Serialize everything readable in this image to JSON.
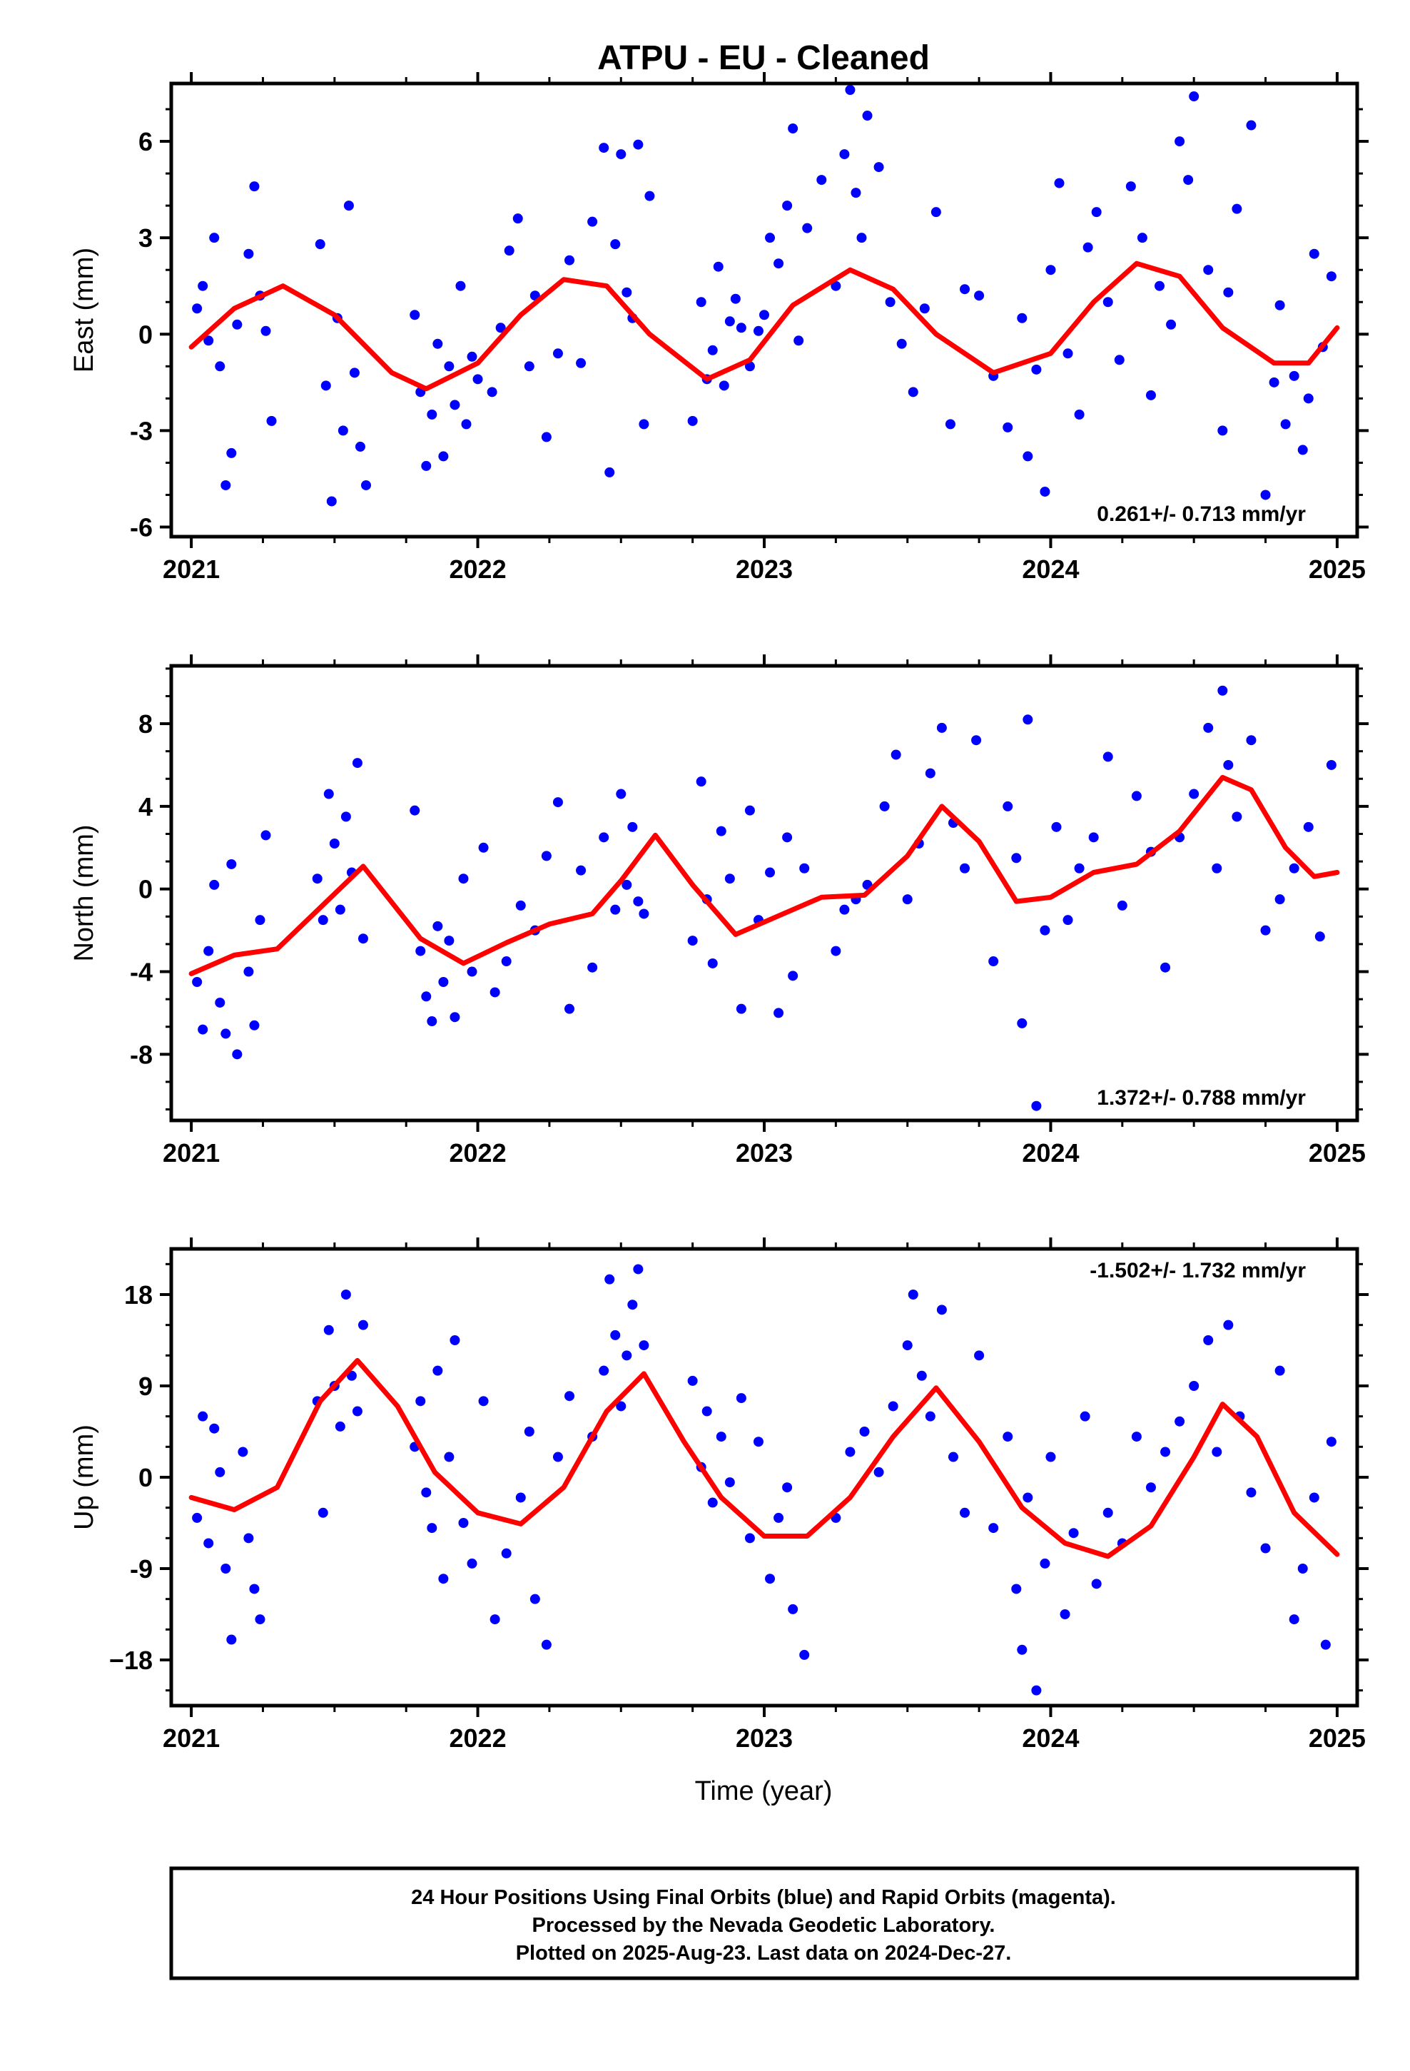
{
  "title": "ATPU  - EU - Cleaned",
  "xlabel": "Time (year)",
  "colors": {
    "final_orbits": "#0000ff",
    "fit": "#ff0000",
    "frame": "#000000"
  },
  "footer": {
    "line1": "24 Hour Positions Using Final Orbits (blue) and Rapid Orbits (magenta).",
    "line2": "Processed by the Nevada Geodetic Laboratory.",
    "line3": "Plotted on 2025-Aug-23. Last data on 2024-Dec-27."
  },
  "chart_data": [
    {
      "type": "scatter",
      "ylabel": "East (mm)",
      "rate_label": "0.261+/- 0.713 mm/yr",
      "rate_position": "bottom-right",
      "xlim": [
        2020.93,
        2025.07
      ],
      "ylim": [
        -6.3,
        7.8
      ],
      "x_ticks": [
        2021,
        2022,
        2023,
        2024,
        2025
      ],
      "x_tick_labels": [
        "2021",
        "2022",
        "2023",
        "2024",
        "2025"
      ],
      "y_ticks": [
        -6,
        -3,
        0,
        3,
        6
      ],
      "y_tick_labels": [
        "-6",
        "-3",
        "0",
        "3",
        "6"
      ],
      "fit_line": {
        "x": [
          2021.0,
          2021.15,
          2021.32,
          2021.5,
          2021.7,
          2021.82,
          2022.0,
          2022.15,
          2022.3,
          2022.45,
          2022.6,
          2022.8,
          2022.95,
          2023.1,
          2023.3,
          2023.45,
          2023.6,
          2023.8,
          2024.0,
          2024.15,
          2024.3,
          2024.45,
          2024.6,
          2024.78,
          2024.9,
          2025.0
        ],
        "y": [
          -0.4,
          0.8,
          1.5,
          0.6,
          -1.2,
          -1.7,
          -0.9,
          0.6,
          1.7,
          1.5,
          0.0,
          -1.4,
          -0.8,
          0.9,
          2.0,
          1.4,
          0.0,
          -1.2,
          -0.6,
          1.0,
          2.2,
          1.8,
          0.2,
          -0.9,
          -0.9,
          0.2
        ]
      },
      "points": {
        "x": [
          2021.02,
          2021.04,
          2021.06,
          2021.08,
          2021.1,
          2021.12,
          2021.14,
          2021.16,
          2021.2,
          2021.22,
          2021.24,
          2021.26,
          2021.28,
          2021.45,
          2021.47,
          2021.49,
          2021.51,
          2021.53,
          2021.55,
          2021.57,
          2021.59,
          2021.61,
          2021.78,
          2021.8,
          2021.82,
          2021.84,
          2021.86,
          2021.88,
          2021.9,
          2021.92,
          2021.94,
          2021.96,
          2021.98,
          2022.0,
          2022.05,
          2022.08,
          2022.11,
          2022.14,
          2022.18,
          2022.2,
          2022.24,
          2022.28,
          2022.32,
          2022.36,
          2022.4,
          2022.44,
          2022.46,
          2022.48,
          2022.5,
          2022.52,
          2022.54,
          2022.56,
          2022.58,
          2022.6,
          2022.75,
          2022.78,
          2022.8,
          2022.82,
          2022.84,
          2022.86,
          2022.88,
          2022.9,
          2022.92,
          2022.95,
          2022.98,
          2023.0,
          2023.02,
          2023.05,
          2023.08,
          2023.1,
          2023.12,
          2023.15,
          2023.2,
          2023.25,
          2023.28,
          2023.3,
          2023.32,
          2023.34,
          2023.36,
          2023.4,
          2023.44,
          2023.48,
          2023.52,
          2023.56,
          2023.6,
          2023.65,
          2023.7,
          2023.75,
          2023.8,
          2023.85,
          2023.9,
          2023.92,
          2023.95,
          2023.98,
          2024.0,
          2024.03,
          2024.06,
          2024.1,
          2024.13,
          2024.16,
          2024.2,
          2024.24,
          2024.28,
          2024.32,
          2024.35,
          2024.38,
          2024.42,
          2024.45,
          2024.48,
          2024.5,
          2024.55,
          2024.6,
          2024.62,
          2024.65,
          2024.7,
          2024.75,
          2024.78,
          2024.8,
          2024.82,
          2024.85,
          2024.88,
          2024.9,
          2024.92,
          2024.95,
          2024.98
        ],
        "y": [
          0.8,
          1.5,
          -0.2,
          3.0,
          -1.0,
          -4.7,
          -3.7,
          0.3,
          2.5,
          4.6,
          1.2,
          0.1,
          -2.7,
          2.8,
          -1.6,
          -5.2,
          0.5,
          -3.0,
          4.0,
          -1.2,
          -3.5,
          -4.7,
          0.6,
          -1.8,
          -4.1,
          -2.5,
          -0.3,
          -3.8,
          -1.0,
          -2.2,
          1.5,
          -2.8,
          -0.7,
          -1.4,
          -1.8,
          0.2,
          2.6,
          3.6,
          -1.0,
          1.2,
          -3.2,
          -0.6,
          2.3,
          -0.9,
          3.5,
          5.8,
          -4.3,
          2.8,
          5.6,
          1.3,
          0.5,
          5.9,
          -2.8,
          4.3,
          -2.7,
          1.0,
          -1.4,
          -0.5,
          2.1,
          -1.6,
          0.4,
          1.1,
          0.2,
          -1.0,
          0.1,
          0.6,
          3.0,
          2.2,
          4.0,
          6.4,
          -0.2,
          3.3,
          4.8,
          1.5,
          5.6,
          7.6,
          4.4,
          3.0,
          6.8,
          5.2,
          1.0,
          -0.3,
          -1.8,
          0.8,
          3.8,
          -2.8,
          1.4,
          1.2,
          -1.3,
          -2.9,
          0.5,
          -3.8,
          -1.1,
          -4.9,
          2.0,
          4.7,
          -0.6,
          -2.5,
          2.7,
          3.8,
          1.0,
          -0.8,
          4.6,
          3.0,
          -1.9,
          1.5,
          0.3,
          6.0,
          4.8,
          7.4,
          2.0,
          -3.0,
          1.3,
          3.9,
          6.5,
          -5.0,
          -1.5,
          0.9,
          -2.8,
          -1.3,
          -3.6,
          -2.0,
          2.5,
          -0.4,
          1.8
        ]
      }
    },
    {
      "type": "scatter",
      "ylabel": "North (mm)",
      "rate_label": "1.372+/- 0.788 mm/yr",
      "rate_position": "bottom-right",
      "xlim": [
        2020.93,
        2025.07
      ],
      "ylim": [
        -11.2,
        10.8
      ],
      "x_ticks": [
        2021,
        2022,
        2023,
        2024,
        2025
      ],
      "x_tick_labels": [
        "2021",
        "2022",
        "2023",
        "2024",
        "2025"
      ],
      "y_ticks": [
        -8,
        -4,
        0,
        4,
        8
      ],
      "y_tick_labels": [
        "-8",
        "-4",
        "0",
        "4",
        "8"
      ],
      "fit_line": {
        "x": [
          2021.0,
          2021.15,
          2021.3,
          2021.45,
          2021.6,
          2021.8,
          2021.95,
          2022.1,
          2022.25,
          2022.4,
          2022.5,
          2022.62,
          2022.75,
          2022.9,
          2023.05,
          2023.2,
          2023.35,
          2023.5,
          2023.62,
          2023.75,
          2023.88,
          2024.0,
          2024.15,
          2024.3,
          2024.45,
          2024.6,
          2024.7,
          2024.82,
          2024.92,
          2025.0
        ],
        "y": [
          -4.1,
          -3.2,
          -2.9,
          -0.9,
          1.1,
          -2.4,
          -3.6,
          -2.6,
          -1.7,
          -1.2,
          0.4,
          2.6,
          0.2,
          -2.2,
          -1.3,
          -0.4,
          -0.3,
          1.6,
          4.0,
          2.3,
          -0.6,
          -0.4,
          0.8,
          1.2,
          2.8,
          5.4,
          4.8,
          2.0,
          0.6,
          0.8
        ]
      },
      "points": {
        "x": [
          2021.02,
          2021.04,
          2021.06,
          2021.08,
          2021.1,
          2021.12,
          2021.14,
          2021.16,
          2021.2,
          2021.22,
          2021.24,
          2021.26,
          2021.44,
          2021.46,
          2021.48,
          2021.5,
          2021.52,
          2021.54,
          2021.56,
          2021.58,
          2021.6,
          2021.78,
          2021.8,
          2021.82,
          2021.84,
          2021.86,
          2021.88,
          2021.9,
          2021.92,
          2021.95,
          2021.98,
          2022.02,
          2022.06,
          2022.1,
          2022.15,
          2022.2,
          2022.24,
          2022.28,
          2022.32,
          2022.36,
          2022.4,
          2022.44,
          2022.48,
          2022.5,
          2022.52,
          2022.54,
          2022.56,
          2022.58,
          2022.75,
          2022.78,
          2022.8,
          2022.82,
          2022.85,
          2022.88,
          2022.92,
          2022.95,
          2022.98,
          2023.02,
          2023.05,
          2023.08,
          2023.1,
          2023.14,
          2023.25,
          2023.28,
          2023.32,
          2023.36,
          2023.42,
          2023.46,
          2023.5,
          2023.54,
          2023.58,
          2023.62,
          2023.66,
          2023.7,
          2023.74,
          2023.8,
          2023.85,
          2023.88,
          2023.9,
          2023.92,
          2023.95,
          2023.98,
          2024.02,
          2024.06,
          2024.1,
          2024.15,
          2024.2,
          2024.25,
          2024.3,
          2024.35,
          2024.4,
          2024.45,
          2024.5,
          2024.55,
          2024.58,
          2024.6,
          2024.62,
          2024.65,
          2024.7,
          2024.75,
          2024.8,
          2024.85,
          2024.9,
          2024.94,
          2024.98
        ],
        "y": [
          -4.5,
          -6.8,
          -3.0,
          0.2,
          -5.5,
          -7.0,
          1.2,
          -8.0,
          -4.0,
          -6.6,
          -1.5,
          2.6,
          0.5,
          -1.5,
          4.6,
          2.2,
          -1.0,
          3.5,
          0.8,
          6.1,
          -2.4,
          3.8,
          -3.0,
          -5.2,
          -6.4,
          -1.8,
          -4.5,
          -2.5,
          -6.2,
          0.5,
          -4.0,
          2.0,
          -5.0,
          -3.5,
          -0.8,
          -2.0,
          1.6,
          4.2,
          -5.8,
          0.9,
          -3.8,
          2.5,
          -1.0,
          4.6,
          0.2,
          3.0,
          -0.6,
          -1.2,
          -2.5,
          5.2,
          -0.5,
          -3.6,
          2.8,
          0.5,
          -5.8,
          3.8,
          -1.5,
          0.8,
          -6.0,
          2.5,
          -4.2,
          1.0,
          -3.0,
          -1.0,
          -0.5,
          0.2,
          4.0,
          6.5,
          -0.5,
          2.2,
          5.6,
          7.8,
          3.2,
          1.0,
          7.2,
          -3.5,
          4.0,
          1.5,
          -6.5,
          8.2,
          -10.5,
          -2.0,
          3.0,
          -1.5,
          1.0,
          2.5,
          6.4,
          -0.8,
          4.5,
          1.8,
          -3.8,
          2.5,
          4.6,
          7.8,
          1.0,
          9.6,
          6.0,
          3.5,
          7.2,
          -2.0,
          -0.5,
          1.0,
          3.0,
          -2.3,
          6.0
        ]
      }
    },
    {
      "type": "scatter",
      "ylabel": "Up (mm)",
      "rate_label": "-1.502+/- 1.732 mm/yr",
      "rate_position": "top-right",
      "xlim": [
        2020.93,
        2025.07
      ],
      "ylim": [
        -22.5,
        22.5
      ],
      "x_ticks": [
        2021,
        2022,
        2023,
        2024,
        2025
      ],
      "x_tick_labels": [
        "2021",
        "2022",
        "2023",
        "2024",
        "2025"
      ],
      "y_ticks": [
        -18,
        -9,
        0,
        9,
        18
      ],
      "y_tick_labels": [
        "−18",
        "-9",
        "0",
        "9",
        "18"
      ],
      "fit_line": {
        "x": [
          2021.0,
          2021.15,
          2021.3,
          2021.45,
          2021.58,
          2021.72,
          2021.85,
          2022.0,
          2022.15,
          2022.3,
          2022.45,
          2022.58,
          2022.72,
          2022.85,
          2023.0,
          2023.15,
          2023.3,
          2023.45,
          2023.6,
          2023.75,
          2023.9,
          2024.05,
          2024.2,
          2024.35,
          2024.5,
          2024.6,
          2024.72,
          2024.85,
          2025.0
        ],
        "y": [
          -2.0,
          -3.2,
          -1.0,
          7.5,
          11.5,
          7.0,
          0.5,
          -3.5,
          -4.6,
          -1.0,
          6.5,
          10.2,
          3.5,
          -2.0,
          -5.8,
          -5.8,
          -2.0,
          4.0,
          8.8,
          3.5,
          -3.0,
          -6.5,
          -7.8,
          -4.8,
          2.0,
          7.2,
          4.0,
          -3.5,
          -7.6
        ]
      },
      "points": {
        "x": [
          2021.02,
          2021.04,
          2021.06,
          2021.08,
          2021.1,
          2021.12,
          2021.14,
          2021.18,
          2021.2,
          2021.22,
          2021.24,
          2021.44,
          2021.46,
          2021.48,
          2021.5,
          2021.52,
          2021.54,
          2021.56,
          2021.58,
          2021.6,
          2021.78,
          2021.8,
          2021.82,
          2021.84,
          2021.86,
          2021.88,
          2021.9,
          2021.92,
          2021.95,
          2021.98,
          2022.02,
          2022.06,
          2022.1,
          2022.15,
          2022.18,
          2022.2,
          2022.24,
          2022.28,
          2022.32,
          2022.4,
          2022.44,
          2022.46,
          2022.48,
          2022.5,
          2022.52,
          2022.54,
          2022.56,
          2022.58,
          2022.75,
          2022.78,
          2022.8,
          2022.82,
          2022.85,
          2022.88,
          2022.92,
          2022.95,
          2022.98,
          2023.02,
          2023.05,
          2023.08,
          2023.1,
          2023.14,
          2023.25,
          2023.3,
          2023.35,
          2023.4,
          2023.45,
          2023.5,
          2023.52,
          2023.55,
          2023.58,
          2023.62,
          2023.66,
          2023.7,
          2023.75,
          2023.8,
          2023.85,
          2023.88,
          2023.9,
          2023.92,
          2023.95,
          2023.98,
          2024.0,
          2024.05,
          2024.08,
          2024.12,
          2024.16,
          2024.2,
          2024.25,
          2024.3,
          2024.35,
          2024.4,
          2024.45,
          2024.5,
          2024.55,
          2024.58,
          2024.62,
          2024.66,
          2024.7,
          2024.75,
          2024.8,
          2024.85,
          2024.88,
          2024.92,
          2024.96,
          2024.98
        ],
        "y": [
          -4.0,
          6.0,
          -6.5,
          4.8,
          0.5,
          -9.0,
          -16.0,
          2.5,
          -6.0,
          -11.0,
          -14.0,
          7.5,
          -3.5,
          14.5,
          9.0,
          5.0,
          18.0,
          10.0,
          6.5,
          15.0,
          3.0,
          7.5,
          -1.5,
          -5.0,
          10.5,
          -10.0,
          2.0,
          13.5,
          -4.5,
          -8.5,
          7.5,
          -14.0,
          -7.5,
          -2.0,
          4.5,
          -12.0,
          -16.5,
          2.0,
          8.0,
          4.0,
          10.5,
          19.5,
          14.0,
          7.0,
          12.0,
          17.0,
          20.5,
          13.0,
          9.5,
          1.0,
          6.5,
          -2.5,
          4.0,
          -0.5,
          7.8,
          -6.0,
          3.5,
          -10.0,
          -4.0,
          -1.0,
          -13.0,
          -17.5,
          -4.0,
          2.5,
          4.5,
          0.5,
          7.0,
          13.0,
          18.0,
          10.0,
          6.0,
          16.5,
          2.0,
          -3.5,
          12.0,
          -5.0,
          4.0,
          -11.0,
          -17.0,
          -2.0,
          -21.0,
          -8.5,
          2.0,
          -13.5,
          -5.5,
          6.0,
          -10.5,
          -3.5,
          -6.5,
          4.0,
          -1.0,
          2.5,
          5.5,
          9.0,
          13.5,
          2.5,
          15.0,
          6.0,
          -1.5,
          -7.0,
          10.5,
          -14.0,
          -9.0,
          -2.0,
          -16.5,
          3.5
        ]
      }
    }
  ]
}
